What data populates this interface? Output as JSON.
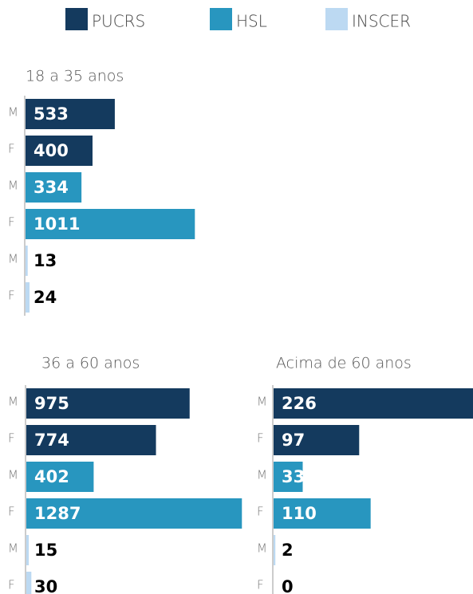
{
  "legend": [
    {
      "name": "PUCRS",
      "color": "#143a5e"
    },
    {
      "name": "HSL",
      "color": "#2896bf"
    },
    {
      "name": "INSCER",
      "color": "#bcd9f2"
    }
  ],
  "chart_data": [
    {
      "type": "bar",
      "orientation": "horizontal",
      "title": "18 a 35 anos",
      "categories": [
        "M",
        "F",
        "M",
        "F",
        "M",
        "F"
      ],
      "values": [
        533,
        400,
        334,
        1011,
        13,
        24
      ],
      "colors": [
        "#143a5e",
        "#143a5e",
        "#2896bf",
        "#2896bf",
        "#bcd9f2",
        "#bcd9f2"
      ],
      "xlim": [
        0,
        1300
      ]
    },
    {
      "type": "bar",
      "orientation": "horizontal",
      "title": "36 a 60 anos",
      "categories": [
        "M",
        "F",
        "M",
        "F",
        "M",
        "F"
      ],
      "values": [
        975,
        774,
        402,
        1287,
        15,
        30
      ],
      "colors": [
        "#143a5e",
        "#143a5e",
        "#2896bf",
        "#2896bf",
        "#bcd9f2",
        "#bcd9f2"
      ],
      "xlim": [
        0,
        1300
      ]
    },
    {
      "type": "bar",
      "orientation": "horizontal",
      "title": "Acima de 60 anos",
      "categories": [
        "M",
        "F",
        "M",
        "F",
        "M",
        "F"
      ],
      "values": [
        226,
        97,
        33,
        110,
        2,
        0
      ],
      "colors": [
        "#143a5e",
        "#143a5e",
        "#2896bf",
        "#2896bf",
        "#bcd9f2",
        "#bcd9f2"
      ],
      "xlim": [
        0,
        226
      ]
    }
  ]
}
